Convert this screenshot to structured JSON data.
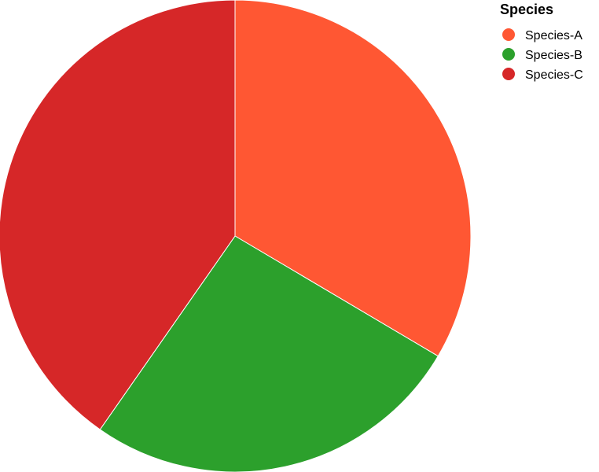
{
  "chart_data": {
    "type": "pie",
    "title": "",
    "legend": {
      "title": "Species",
      "placement": "top-right"
    },
    "slices": [
      {
        "label": "Species-A",
        "value": 33.5,
        "color": "#ff5733"
      },
      {
        "label": "Species-B",
        "value": 26.2,
        "color": "#2ca02c"
      },
      {
        "label": "Species-C",
        "value": 40.3,
        "color": "#d62728"
      }
    ],
    "start_angle_deg": 0,
    "direction": "clockwise",
    "slice_border_color": "#ffffff"
  }
}
